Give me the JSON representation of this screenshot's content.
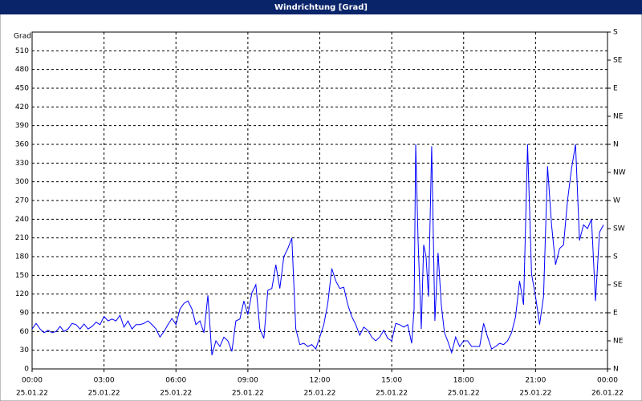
{
  "chart_data": {
    "type": "line",
    "title": "Windrichtung [Grad]",
    "y_label": "Grad",
    "color": "#0000ff",
    "grid": true,
    "x": [
      0,
      0.167,
      0.333,
      0.5,
      0.667,
      0.833,
      1.0,
      1.167,
      1.333,
      1.5,
      1.667,
      1.833,
      2.0,
      2.167,
      2.333,
      2.5,
      2.667,
      2.833,
      3.0,
      3.167,
      3.333,
      3.5,
      3.667,
      3.833,
      4.0,
      4.167,
      4.333,
      4.5,
      4.667,
      4.833,
      5.0,
      5.167,
      5.333,
      5.5,
      5.667,
      5.833,
      6.0,
      6.167,
      6.333,
      6.5,
      6.667,
      6.833,
      7.0,
      7.167,
      7.333,
      7.5,
      7.667,
      7.833,
      8.0,
      8.167,
      8.333,
      8.5,
      8.667,
      8.833,
      9.0,
      9.167,
      9.333,
      9.5,
      9.667,
      9.833,
      10.0,
      10.167,
      10.333,
      10.5,
      10.667,
      10.833,
      11.0,
      11.167,
      11.333,
      11.5,
      11.667,
      11.833,
      12.0,
      12.167,
      12.333,
      12.5,
      12.667,
      12.833,
      13.0,
      13.167,
      13.333,
      13.5,
      13.667,
      13.833,
      14.0,
      14.167,
      14.333,
      14.5,
      14.667,
      14.833,
      15.0,
      15.167,
      15.333,
      15.5,
      15.667,
      15.833,
      15.933,
      16.0,
      16.1,
      16.233,
      16.333,
      16.433,
      16.533,
      16.667,
      16.8,
      16.933,
      17.067,
      17.2,
      17.333,
      17.5,
      17.667,
      17.833,
      18.0,
      18.167,
      18.333,
      18.5,
      18.667,
      18.833,
      19.0,
      19.167,
      19.333,
      19.5,
      19.667,
      19.833,
      20.0,
      20.167,
      20.333,
      20.5,
      20.667,
      20.833,
      21.0,
      21.167,
      21.333,
      21.5,
      21.667,
      21.833,
      22.0,
      22.167,
      22.333,
      22.5,
      22.667,
      22.833,
      23.0,
      23.167,
      23.333,
      23.5,
      23.667,
      23.833
    ],
    "values": [
      64,
      73,
      64,
      58,
      62,
      58,
      60,
      68,
      60,
      64,
      73,
      71,
      64,
      72,
      64,
      68,
      75,
      71,
      84,
      77,
      80,
      77,
      86,
      67,
      77,
      64,
      71,
      71,
      73,
      77,
      71,
      64,
      51,
      60,
      71,
      81,
      71,
      96,
      105,
      109,
      96,
      71,
      77,
      58,
      118,
      22,
      45,
      36,
      51,
      45,
      28,
      77,
      80,
      109,
      87,
      122,
      135,
      64,
      49,
      126,
      129,
      167,
      129,
      180,
      193,
      210,
      64,
      39,
      41,
      36,
      39,
      32,
      51,
      71,
      105,
      161,
      141,
      129,
      131,
      103,
      84,
      71,
      54,
      67,
      62,
      51,
      45,
      51,
      62,
      49,
      45,
      73,
      71,
      67,
      71,
      41,
      96,
      360,
      206,
      64,
      199,
      180,
      116,
      357,
      77,
      186,
      103,
      58,
      45,
      26,
      51,
      36,
      45,
      45,
      36,
      36,
      36,
      73,
      51,
      32,
      36,
      41,
      39,
      45,
      58,
      84,
      141,
      103,
      360,
      152,
      116,
      71,
      116,
      325,
      231,
      167,
      193,
      199,
      270,
      321,
      360,
      206,
      231,
      225,
      240,
      109,
      219,
      231
    ],
    "xlim": [
      0,
      24
    ],
    "xticks": [
      {
        "value": 0,
        "label": "00:00"
      },
      {
        "value": 3,
        "label": "03:00"
      },
      {
        "value": 6,
        "label": "06:00"
      },
      {
        "value": 9,
        "label": "09:00"
      },
      {
        "value": 12,
        "label": "12:00"
      },
      {
        "value": 15,
        "label": "15:00"
      },
      {
        "value": 18,
        "label": "18:00"
      },
      {
        "value": 21,
        "label": "21:00"
      },
      {
        "value": 24,
        "label": "00:00"
      }
    ],
    "xtick_dates": [
      "25.01.22",
      "25.01.22",
      "25.01.22",
      "25.01.22",
      "25.01.22",
      "25.01.22",
      "25.01.22",
      "25.01.22",
      "26.01.22"
    ],
    "ylim": [
      0,
      540
    ],
    "yticks": [
      0,
      30,
      60,
      90,
      120,
      150,
      180,
      210,
      240,
      270,
      300,
      330,
      360,
      390,
      420,
      450,
      480,
      510
    ],
    "y2lim": [
      0,
      540
    ],
    "y2ticks": [
      {
        "value": 0,
        "label": "N"
      },
      {
        "value": 45,
        "label": "NE"
      },
      {
        "value": 90,
        "label": "E"
      },
      {
        "value": 135,
        "label": "SE"
      },
      {
        "value": 180,
        "label": "S"
      },
      {
        "value": 225,
        "label": "SW"
      },
      {
        "value": 270,
        "label": "W"
      },
      {
        "value": 315,
        "label": "NW"
      },
      {
        "value": 360,
        "label": "N"
      },
      {
        "value": 405,
        "label": "NE"
      },
      {
        "value": 450,
        "label": "E"
      },
      {
        "value": 495,
        "label": "SE"
      },
      {
        "value": 540,
        "label": "S"
      }
    ]
  }
}
